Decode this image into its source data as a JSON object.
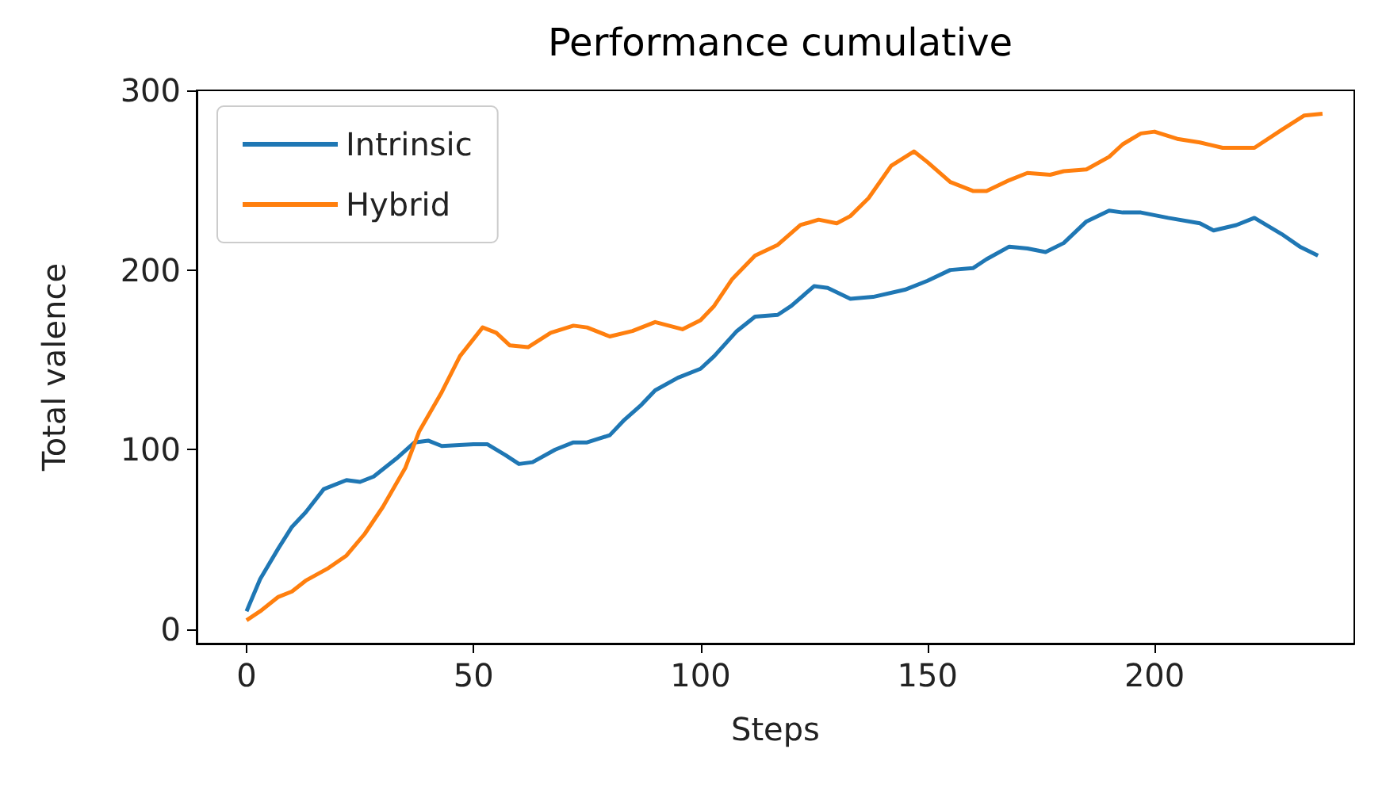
{
  "chart_data": {
    "type": "line",
    "title": "Performance cumulative",
    "xlabel": "Steps",
    "ylabel": "Total valence",
    "xlim": [
      -11,
      244
    ],
    "xticks": [
      0,
      50,
      100,
      150,
      200
    ],
    "ylim": [
      -8,
      300
    ],
    "yticks": [
      0,
      100,
      200,
      300
    ],
    "legend": "top left",
    "grid": false,
    "series": [
      {
        "name": "Intrinsic",
        "color": "#1f77b4",
        "x": [
          0,
          3,
          7,
          10,
          13,
          17,
          22,
          25,
          28,
          33,
          37,
          40,
          43,
          50,
          53,
          57,
          60,
          63,
          68,
          72,
          75,
          80,
          83,
          87,
          90,
          95,
          100,
          103,
          108,
          112,
          117,
          120,
          125,
          128,
          133,
          138,
          145,
          150,
          155,
          160,
          163,
          168,
          172,
          176,
          180,
          185,
          190,
          193,
          197,
          203,
          210,
          213,
          218,
          222,
          228,
          232,
          236
        ],
        "values": [
          10,
          28,
          45,
          57,
          65,
          78,
          83,
          82,
          85,
          95,
          104,
          105,
          102,
          103,
          103,
          97,
          92,
          93,
          100,
          104,
          104,
          108,
          116,
          125,
          133,
          140,
          145,
          152,
          166,
          174,
          175,
          180,
          191,
          190,
          184,
          185,
          189,
          194,
          200,
          201,
          206,
          213,
          212,
          210,
          215,
          227,
          233,
          232,
          232,
          229,
          226,
          222,
          225,
          229,
          220,
          213,
          208
        ]
      },
      {
        "name": "Hybrid",
        "color": "#ff7f0e",
        "x": [
          0,
          3,
          7,
          10,
          13,
          18,
          22,
          26,
          30,
          35,
          38,
          43,
          47,
          52,
          55,
          58,
          62,
          67,
          72,
          75,
          80,
          85,
          90,
          96,
          100,
          103,
          107,
          112,
          117,
          122,
          126,
          130,
          133,
          137,
          142,
          147,
          150,
          155,
          160,
          163,
          168,
          172,
          177,
          180,
          185,
          190,
          193,
          197,
          200,
          205,
          210,
          215,
          222,
          228,
          233,
          237
        ],
        "values": [
          5,
          10,
          18,
          21,
          27,
          34,
          41,
          53,
          68,
          90,
          110,
          132,
          152,
          168,
          165,
          158,
          157,
          165,
          169,
          168,
          163,
          166,
          171,
          167,
          172,
          180,
          195,
          208,
          214,
          225,
          228,
          226,
          230,
          240,
          258,
          266,
          260,
          249,
          244,
          244,
          250,
          254,
          253,
          255,
          256,
          263,
          270,
          276,
          277,
          273,
          271,
          268,
          268,
          278,
          286,
          287
        ]
      }
    ]
  }
}
